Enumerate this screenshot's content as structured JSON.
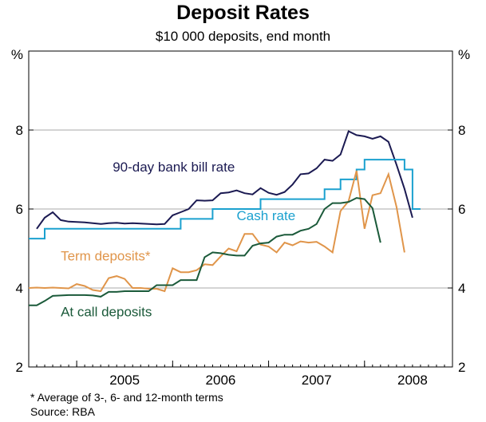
{
  "title": "Deposit Rates",
  "subtitle": "$10 000 deposits, end month",
  "footnotes": [
    "*   Average of 3-, 6- and 12-month terms",
    "Source: RBA"
  ],
  "chart_data": {
    "type": "line",
    "x_unit": "months (monthly observations, end month)",
    "xlim": [
      "2004-07",
      "2008-12"
    ],
    "ylim": [
      2,
      10
    ],
    "y_ticks": [
      2,
      4,
      6,
      8
    ],
    "y_unit_label_left": "%",
    "y_unit_label_right": "%",
    "x_tick_labels": [
      "2005",
      "2006",
      "2007",
      "2008"
    ],
    "grid": true,
    "legend": "inline labels",
    "series": [
      {
        "name": "90-day bank bill rate",
        "color": "#1b1a52",
        "step": false,
        "label_value": [
          10.5,
          6.95
        ],
        "points": [
          [
            1,
            5.5
          ],
          [
            2,
            5.78
          ],
          [
            3,
            5.92
          ],
          [
            4,
            5.72
          ],
          [
            5,
            5.68
          ],
          [
            6,
            5.67
          ],
          [
            7,
            5.66
          ],
          [
            8,
            5.64
          ],
          [
            9,
            5.62
          ],
          [
            10,
            5.64
          ],
          [
            11,
            5.65
          ],
          [
            12,
            5.63
          ],
          [
            13,
            5.64
          ],
          [
            14,
            5.63
          ],
          [
            15,
            5.62
          ],
          [
            16,
            5.61
          ],
          [
            17,
            5.62
          ],
          [
            18,
            5.84
          ],
          [
            19,
            5.92
          ],
          [
            20,
            6.0
          ],
          [
            21,
            6.22
          ],
          [
            22,
            6.21
          ],
          [
            23,
            6.22
          ],
          [
            24,
            6.4
          ],
          [
            25,
            6.42
          ],
          [
            26,
            6.47
          ],
          [
            27,
            6.4
          ],
          [
            28,
            6.37
          ],
          [
            29,
            6.53
          ],
          [
            30,
            6.41
          ],
          [
            31,
            6.36
          ],
          [
            32,
            6.43
          ],
          [
            33,
            6.62
          ],
          [
            34,
            6.88
          ],
          [
            35,
            6.9
          ],
          [
            36,
            7.03
          ],
          [
            37,
            7.25
          ],
          [
            38,
            7.22
          ],
          [
            39,
            7.38
          ],
          [
            40,
            7.97
          ],
          [
            41,
            7.87
          ],
          [
            42,
            7.84
          ],
          [
            43,
            7.78
          ],
          [
            44,
            7.84
          ],
          [
            45,
            7.7
          ],
          [
            46,
            7.12
          ],
          [
            47,
            6.51
          ],
          [
            48,
            5.78
          ]
        ]
      },
      {
        "name": "Cash rate",
        "color": "#1ba1cf",
        "step": true,
        "label_value": [
          26.0,
          5.72
        ],
        "points": [
          [
            0,
            5.25
          ],
          [
            2,
            5.25
          ],
          [
            2,
            5.5
          ],
          [
            19,
            5.5
          ],
          [
            19,
            5.75
          ],
          [
            23,
            5.75
          ],
          [
            23,
            6.0
          ],
          [
            29,
            6.0
          ],
          [
            29,
            6.25
          ],
          [
            37,
            6.25
          ],
          [
            37,
            6.5
          ],
          [
            39,
            6.5
          ],
          [
            39,
            6.75
          ],
          [
            41,
            6.75
          ],
          [
            41,
            7.0
          ],
          [
            42,
            7.0
          ],
          [
            42,
            7.25
          ],
          [
            47,
            7.25
          ],
          [
            47,
            7.0
          ],
          [
            48,
            7.0
          ],
          [
            48,
            6.0
          ],
          [
            49,
            6.0
          ]
        ]
      },
      {
        "name": "Term deposits*",
        "color": "#e0954a",
        "step": false,
        "label_value": [
          4.0,
          4.7
        ],
        "points": [
          [
            0,
            4.0
          ],
          [
            1,
            4.01
          ],
          [
            2,
            4.0
          ],
          [
            3,
            4.01
          ],
          [
            4,
            4.0
          ],
          [
            5,
            3.99
          ],
          [
            6,
            4.1
          ],
          [
            7,
            4.05
          ],
          [
            8,
            3.95
          ],
          [
            9,
            3.92
          ],
          [
            10,
            4.25
          ],
          [
            11,
            4.3
          ],
          [
            12,
            4.23
          ],
          [
            13,
            4.0
          ],
          [
            14,
            4.0
          ],
          [
            15,
            3.98
          ],
          [
            16,
            3.98
          ],
          [
            17,
            3.92
          ],
          [
            18,
            4.5
          ],
          [
            19,
            4.4
          ],
          [
            20,
            4.4
          ],
          [
            21,
            4.45
          ],
          [
            22,
            4.6
          ],
          [
            23,
            4.58
          ],
          [
            24,
            4.8
          ],
          [
            25,
            5.0
          ],
          [
            26,
            4.93
          ],
          [
            27,
            5.37
          ],
          [
            28,
            5.37
          ],
          [
            29,
            5.1
          ],
          [
            30,
            5.05
          ],
          [
            31,
            4.9
          ],
          [
            32,
            5.15
          ],
          [
            33,
            5.08
          ],
          [
            34,
            5.18
          ],
          [
            35,
            5.15
          ],
          [
            36,
            5.17
          ],
          [
            37,
            5.05
          ],
          [
            38,
            4.9
          ],
          [
            39,
            5.95
          ],
          [
            40,
            6.2
          ],
          [
            41,
            6.97
          ],
          [
            42,
            5.5
          ],
          [
            43,
            6.35
          ],
          [
            44,
            6.4
          ],
          [
            45,
            6.88
          ],
          [
            46,
            6.05
          ],
          [
            47,
            4.9
          ]
        ]
      },
      {
        "name": "At call deposits",
        "color": "#1b5a3a",
        "step": false,
        "label_value": [
          4.0,
          3.28
        ],
        "points": [
          [
            0,
            3.56
          ],
          [
            1,
            3.56
          ],
          [
            2,
            3.67
          ],
          [
            3,
            3.8
          ],
          [
            4,
            3.81
          ],
          [
            5,
            3.82
          ],
          [
            6,
            3.82
          ],
          [
            7,
            3.82
          ],
          [
            8,
            3.81
          ],
          [
            9,
            3.78
          ],
          [
            10,
            3.9
          ],
          [
            11,
            3.9
          ],
          [
            12,
            3.92
          ],
          [
            13,
            3.92
          ],
          [
            14,
            3.92
          ],
          [
            15,
            3.92
          ],
          [
            16,
            4.07
          ],
          [
            17,
            4.07
          ],
          [
            18,
            4.07
          ],
          [
            19,
            4.2
          ],
          [
            20,
            4.2
          ],
          [
            21,
            4.2
          ],
          [
            22,
            4.78
          ],
          [
            23,
            4.9
          ],
          [
            24,
            4.88
          ],
          [
            25,
            4.84
          ],
          [
            26,
            4.82
          ],
          [
            27,
            4.82
          ],
          [
            28,
            5.07
          ],
          [
            29,
            5.13
          ],
          [
            30,
            5.15
          ],
          [
            31,
            5.3
          ],
          [
            32,
            5.35
          ],
          [
            33,
            5.35
          ],
          [
            34,
            5.45
          ],
          [
            35,
            5.5
          ],
          [
            36,
            5.62
          ],
          [
            37,
            6.0
          ],
          [
            38,
            6.15
          ],
          [
            39,
            6.15
          ],
          [
            40,
            6.18
          ],
          [
            41,
            6.28
          ],
          [
            42,
            6.25
          ],
          [
            43,
            6.02
          ],
          [
            44,
            5.15
          ]
        ]
      }
    ]
  }
}
